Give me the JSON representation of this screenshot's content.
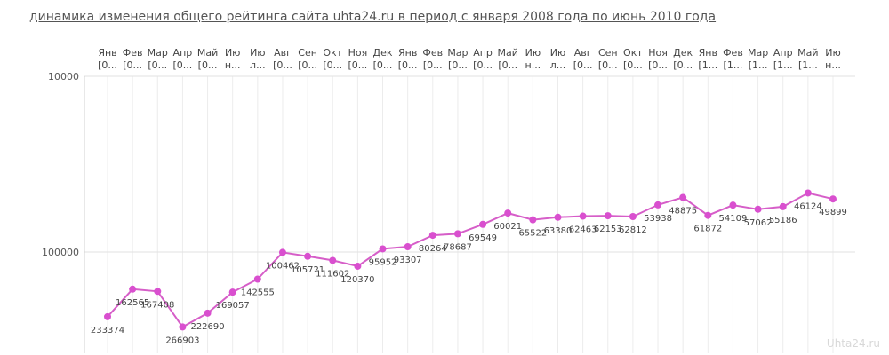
{
  "title": "динамика изменения общего рейтинга сайта uhta24.ru в период с января 2008 года по июнь 2010 года",
  "watermark": "Uhta24.ru",
  "chart_data": {
    "type": "line",
    "y_scale": "log",
    "y_inverted": true,
    "ylim": [
      10000,
      300000
    ],
    "y_ticks": [
      "10000",
      "100000"
    ],
    "grid": true,
    "line_color": "#d65ec8",
    "marker_color": "#d94fcf",
    "categories": [
      "Янв",
      "Фев",
      "Мар",
      "Апр",
      "Май",
      "Ию",
      "Ию",
      "Авг",
      "Сен",
      "Окт",
      "Ноя",
      "Дек",
      "Янв",
      "Фев",
      "Мар",
      "Апр",
      "Май",
      "Ию",
      "Ию",
      "Авг",
      "Сен",
      "Окт",
      "Ноя",
      "Дек",
      "Янв",
      "Фев",
      "Мар",
      "Апр",
      "Май",
      "Ию"
    ],
    "category_sublabels": [
      "[0...",
      "[0...",
      "[0...",
      "[0...",
      "[0...",
      "н...",
      "л...",
      "[0...",
      "[0...",
      "[0...",
      "[0...",
      "[0...",
      "[0...",
      "[0...",
      "[0...",
      "[0...",
      "[0...",
      "н...",
      "л...",
      "[0...",
      "[0...",
      "[0...",
      "[0...",
      "[0...",
      "[1...",
      "[1...",
      "[1...",
      "[1...",
      "[1...",
      "н..."
    ],
    "values": [
      233374,
      162565,
      167408,
      266903,
      222690,
      169057,
      142555,
      100462,
      105721,
      111602,
      120370,
      95952,
      93307,
      80264,
      78687,
      69549,
      60021,
      65522,
      63380,
      62463,
      62153,
      62812,
      53938,
      48875,
      61872,
      54109,
      57062,
      55186,
      46124,
      49899
    ],
    "labels": [
      "233374",
      "162565",
      "167408",
      "266903",
      "222690",
      "169057",
      "142555",
      "100462",
      "105721",
      "111602",
      "120370",
      "95952",
      "93307",
      "80264",
      "78687",
      "69549",
      "60021",
      "65522",
      "63380",
      "62463",
      "62153",
      "62812",
      "53938",
      "48875",
      "61872",
      "54109",
      "57062",
      "55186",
      "46124",
      "49899"
    ]
  }
}
